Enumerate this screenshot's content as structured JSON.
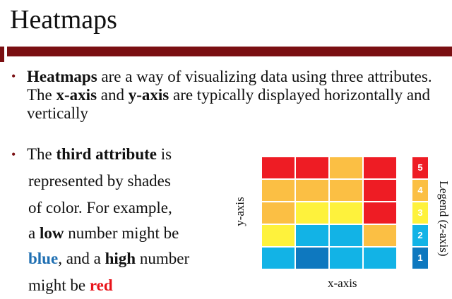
{
  "title": "Heatmaps",
  "bullet1": {
    "parts": [
      "Heatmaps",
      " are a way of visualizing data using three attributes. The ",
      "x-axis",
      " and ",
      "y-axis",
      " are typically displayed horizontally and vertically"
    ]
  },
  "bullet2": {
    "line1": [
      "The ",
      "third attribute",
      " is"
    ],
    "line2": "represented by shades",
    "line3": "of color. For example,",
    "line4": [
      "a ",
      "low",
      " number might be"
    ],
    "line5": [
      "blue",
      ", and a ",
      "high",
      " number"
    ],
    "line6": [
      "might be ",
      "red"
    ]
  },
  "bullet_marker": "•",
  "chart_data": {
    "type": "heatmap",
    "xlabel": "x-axis",
    "ylabel": "y-axis",
    "legend_title": "Legend (z-axis)",
    "rows": [
      [
        5,
        5,
        4,
        5
      ],
      [
        4,
        4,
        4,
        5
      ],
      [
        4,
        3,
        3,
        5
      ],
      [
        3,
        2,
        2,
        4
      ],
      [
        2,
        1,
        2,
        2
      ]
    ],
    "legend": [
      {
        "value": "5",
        "color": "#ee1c24"
      },
      {
        "value": "4",
        "color": "#fbbf44"
      },
      {
        "value": "3",
        "color": "#fef23c"
      },
      {
        "value": "2",
        "color": "#12b3e6"
      },
      {
        "value": "1",
        "color": "#0e78bf"
      }
    ]
  }
}
